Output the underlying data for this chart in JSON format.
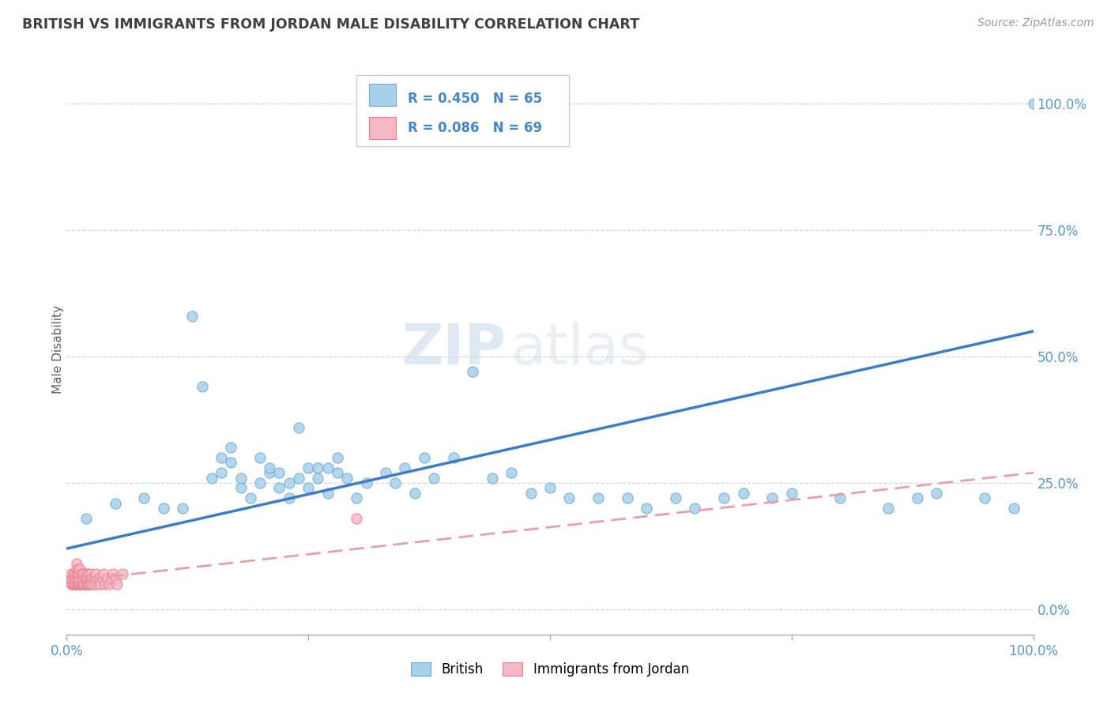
{
  "title": "BRITISH VS IMMIGRANTS FROM JORDAN MALE DISABILITY CORRELATION CHART",
  "source": "Source: ZipAtlas.com",
  "ylabel": "Male Disability",
  "watermark_zip": "ZIP",
  "watermark_atlas": "atlas",
  "british_R": 0.45,
  "british_N": 65,
  "jordan_R": 0.086,
  "jordan_N": 69,
  "british_color": "#a8d0ec",
  "jordan_color": "#f5b8c4",
  "british_edge_color": "#6aaad4",
  "jordan_edge_color": "#e8808f",
  "british_line_color": "#3d7cc9",
  "jordan_line_color": "#e8a0a8",
  "background_color": "#ffffff",
  "grid_color": "#d0d8e8",
  "title_color": "#404040",
  "axis_tick_color": "#5599cc",
  "legend_text_color": "#4488cc",
  "british_x": [
    0.02,
    0.05,
    0.08,
    0.1,
    0.12,
    0.13,
    0.14,
    0.15,
    0.16,
    0.16,
    0.17,
    0.17,
    0.18,
    0.18,
    0.19,
    0.2,
    0.2,
    0.21,
    0.21,
    0.22,
    0.22,
    0.23,
    0.23,
    0.24,
    0.24,
    0.25,
    0.25,
    0.26,
    0.26,
    0.27,
    0.27,
    0.28,
    0.28,
    0.29,
    0.3,
    0.31,
    0.33,
    0.34,
    0.35,
    0.36,
    0.37,
    0.38,
    0.4,
    0.42,
    0.44,
    0.46,
    0.48,
    0.5,
    0.52,
    0.55,
    0.58,
    0.6,
    0.63,
    0.65,
    0.68,
    0.7,
    0.73,
    0.75,
    0.8,
    0.85,
    0.88,
    0.9,
    0.95,
    0.98,
    1.0
  ],
  "british_y": [
    0.18,
    0.21,
    0.22,
    0.2,
    0.2,
    0.58,
    0.44,
    0.26,
    0.27,
    0.3,
    0.32,
    0.29,
    0.24,
    0.26,
    0.22,
    0.25,
    0.3,
    0.27,
    0.28,
    0.24,
    0.27,
    0.22,
    0.25,
    0.26,
    0.36,
    0.28,
    0.24,
    0.26,
    0.28,
    0.28,
    0.23,
    0.27,
    0.3,
    0.26,
    0.22,
    0.25,
    0.27,
    0.25,
    0.28,
    0.23,
    0.3,
    0.26,
    0.3,
    0.47,
    0.26,
    0.27,
    0.23,
    0.24,
    0.22,
    0.22,
    0.22,
    0.2,
    0.22,
    0.2,
    0.22,
    0.23,
    0.22,
    0.23,
    0.22,
    0.2,
    0.22,
    0.23,
    0.22,
    0.2,
    1.0
  ],
  "jordan_x": [
    0.005,
    0.005,
    0.005,
    0.006,
    0.006,
    0.007,
    0.007,
    0.008,
    0.008,
    0.008,
    0.009,
    0.009,
    0.01,
    0.01,
    0.01,
    0.01,
    0.01,
    0.011,
    0.011,
    0.012,
    0.012,
    0.012,
    0.013,
    0.013,
    0.013,
    0.014,
    0.014,
    0.015,
    0.015,
    0.015,
    0.016,
    0.016,
    0.017,
    0.017,
    0.018,
    0.018,
    0.019,
    0.02,
    0.02,
    0.021,
    0.021,
    0.022,
    0.022,
    0.023,
    0.023,
    0.024,
    0.024,
    0.025,
    0.025,
    0.026,
    0.027,
    0.028,
    0.029,
    0.03,
    0.03,
    0.032,
    0.033,
    0.035,
    0.037,
    0.038,
    0.04,
    0.042,
    0.044,
    0.046,
    0.048,
    0.05,
    0.052,
    0.058,
    0.3
  ],
  "jordan_y": [
    0.05,
    0.06,
    0.07,
    0.05,
    0.06,
    0.05,
    0.07,
    0.05,
    0.06,
    0.07,
    0.05,
    0.06,
    0.05,
    0.06,
    0.07,
    0.08,
    0.09,
    0.05,
    0.07,
    0.05,
    0.06,
    0.08,
    0.05,
    0.06,
    0.07,
    0.05,
    0.08,
    0.05,
    0.06,
    0.07,
    0.05,
    0.07,
    0.05,
    0.06,
    0.05,
    0.07,
    0.06,
    0.05,
    0.06,
    0.05,
    0.07,
    0.05,
    0.06,
    0.05,
    0.07,
    0.05,
    0.06,
    0.05,
    0.07,
    0.06,
    0.05,
    0.06,
    0.05,
    0.06,
    0.07,
    0.05,
    0.06,
    0.05,
    0.06,
    0.07,
    0.05,
    0.06,
    0.05,
    0.06,
    0.07,
    0.06,
    0.05,
    0.07,
    0.18
  ],
  "british_line_x0": 0.0,
  "british_line_x1": 1.0,
  "british_line_y0": 0.12,
  "british_line_y1": 0.55,
  "jordan_line_x0": 0.0,
  "jordan_line_x1": 1.0,
  "jordan_line_y0": 0.055,
  "jordan_line_y1": 0.27,
  "xlim": [
    0.0,
    1.0
  ],
  "ylim": [
    -0.05,
    1.08
  ],
  "yticks": [
    0.0,
    0.25,
    0.5,
    0.75,
    1.0
  ],
  "xtick_show": [
    0.0,
    1.0
  ],
  "xtick_labels_show": [
    "0.0%",
    "100.0%"
  ]
}
